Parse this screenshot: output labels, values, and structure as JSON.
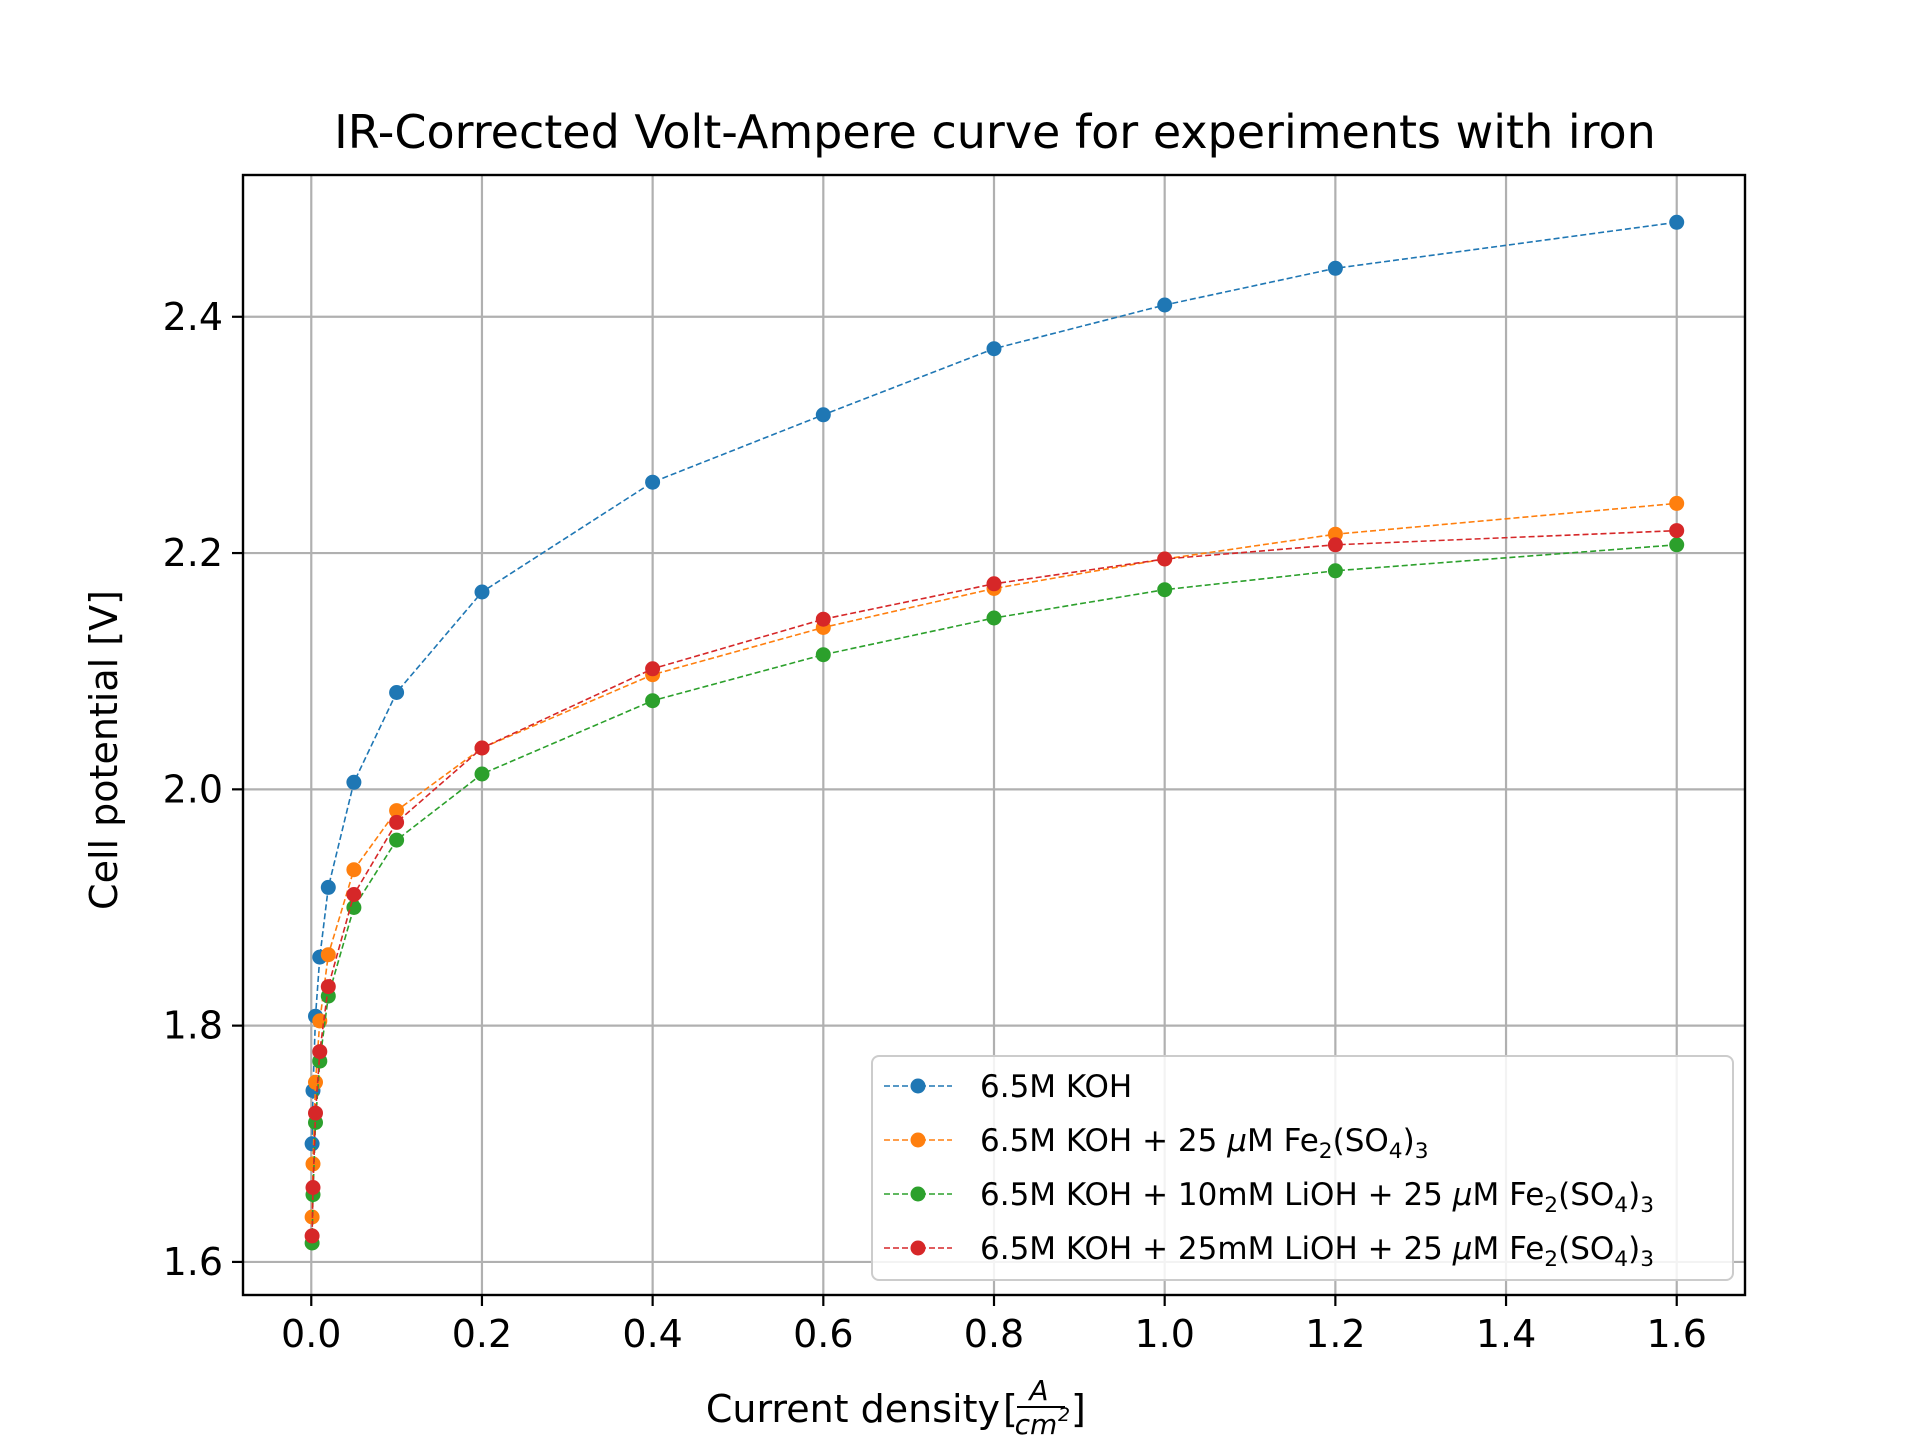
{
  "chart_data": {
    "type": "line",
    "title": "IR-Corrected Volt-Ampere curve for experiments with iron",
    "xlabel": "Current density",
    "xlabel_unit": {
      "numerator": "A",
      "denominator": "cm",
      "exponent": "2"
    },
    "ylabel": "Cell potential [V]",
    "xlim": [
      -0.08,
      1.68
    ],
    "ylim": [
      1.572,
      2.52
    ],
    "xticks": [
      0.0,
      0.2,
      0.4,
      0.6,
      0.8,
      1.0,
      1.2,
      1.4,
      1.6
    ],
    "xtick_labels": [
      "0.0",
      "0.2",
      "0.4",
      "0.6",
      "0.8",
      "1.0",
      "1.2",
      "1.4",
      "1.6"
    ],
    "yticks": [
      1.6,
      1.8,
      2.0,
      2.2,
      2.4
    ],
    "ytick_labels": [
      "1.6",
      "1.8",
      "2.0",
      "2.2",
      "2.4"
    ],
    "grid": true,
    "legend_position": "lower-right",
    "line_style": "dashed",
    "marker": "circle",
    "x": [
      0.001,
      0.002,
      0.005,
      0.01,
      0.02,
      0.05,
      0.1,
      0.2,
      0.4,
      0.6,
      0.8,
      1.0,
      1.2,
      1.6
    ],
    "series": [
      {
        "name": "6.5M KOH",
        "name_parts": [
          {
            "text": "6.5M KOH"
          }
        ],
        "color": "#1f77b4",
        "values": [
          1.7,
          1.745,
          1.808,
          1.858,
          1.917,
          2.006,
          2.082,
          2.167,
          2.26,
          2.317,
          2.373,
          2.41,
          2.441,
          2.48
        ]
      },
      {
        "name": "6.5M KOH + 25 μM Fe2(SO4)3",
        "name_parts": [
          {
            "text": "6.5M KOH + 25 "
          },
          {
            "text": "μ",
            "style": "italic"
          },
          {
            "text": "M Fe"
          },
          {
            "text": "2",
            "style": "sub"
          },
          {
            "text": "(SO"
          },
          {
            "text": "4",
            "style": "sub"
          },
          {
            "text": ")"
          },
          {
            "text": "3",
            "style": "sub"
          }
        ],
        "color": "#ff7f0e",
        "values": [
          1.638,
          1.683,
          1.752,
          1.804,
          1.86,
          1.932,
          1.982,
          2.035,
          2.097,
          2.137,
          2.17,
          2.195,
          2.216,
          2.242
        ]
      },
      {
        "name": "6.5M KOH + 10mM LiOH + 25 μM Fe2(SO4)3",
        "name_parts": [
          {
            "text": "6.5M KOH + 10mM LiOH + 25 "
          },
          {
            "text": "μ",
            "style": "italic"
          },
          {
            "text": "M Fe"
          },
          {
            "text": "2",
            "style": "sub"
          },
          {
            "text": "(SO"
          },
          {
            "text": "4",
            "style": "sub"
          },
          {
            "text": ")"
          },
          {
            "text": "3",
            "style": "sub"
          }
        ],
        "color": "#2ca02c",
        "values": [
          1.616,
          1.657,
          1.718,
          1.77,
          1.825,
          1.9,
          1.957,
          2.013,
          2.075,
          2.114,
          2.145,
          2.169,
          2.185,
          2.207
        ]
      },
      {
        "name": "6.5M KOH + 25mM LiOH + 25 μM Fe2(SO4)3",
        "name_parts": [
          {
            "text": "6.5M KOH + 25mM LiOH + 25 "
          },
          {
            "text": "μ",
            "style": "italic"
          },
          {
            "text": "M Fe"
          },
          {
            "text": "2",
            "style": "sub"
          },
          {
            "text": "(SO"
          },
          {
            "text": "4",
            "style": "sub"
          },
          {
            "text": ")"
          },
          {
            "text": "3",
            "style": "sub"
          }
        ],
        "color": "#d62728",
        "values": [
          1.622,
          1.663,
          1.726,
          1.778,
          1.833,
          1.911,
          1.972,
          2.035,
          2.102,
          2.144,
          2.174,
          2.195,
          2.207,
          2.219
        ]
      }
    ]
  }
}
